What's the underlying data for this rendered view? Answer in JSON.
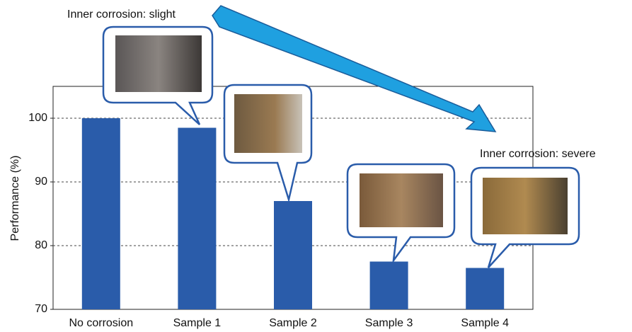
{
  "chart_data": {
    "type": "bar",
    "categories": [
      "No corrosion",
      "Sample 1",
      "Sample 2",
      "Sample 3",
      "Sample 4"
    ],
    "values": [
      100,
      98.5,
      87,
      77.5,
      76.5
    ],
    "color": "#2a5caa",
    "y_label": "Performance (%)",
    "ylim": [
      70,
      105
    ],
    "yticks": [
      70,
      80,
      90,
      100
    ],
    "grid": true,
    "annotations": [
      "Inner corrosion: slight",
      "Inner corrosion: severe"
    ]
  }
}
